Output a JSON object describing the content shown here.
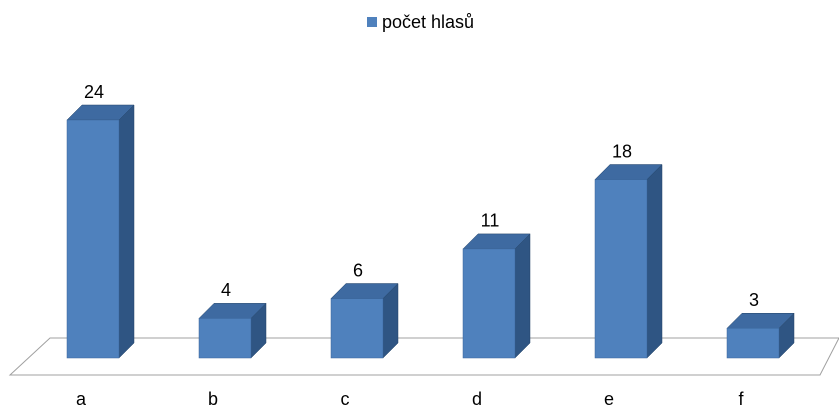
{
  "chart_data": {
    "type": "bar3d",
    "categories": [
      "a",
      "b",
      "c",
      "d",
      "e",
      "f"
    ],
    "series": [
      {
        "name": "počet hlasů",
        "color": "#4f81bd",
        "values": [
          24,
          4,
          6,
          11,
          18,
          3
        ]
      }
    ],
    "legend": "top",
    "data_labels": true
  }
}
